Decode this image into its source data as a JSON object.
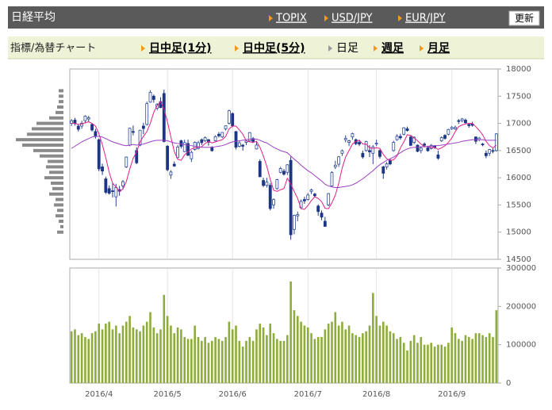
{
  "header": {
    "title": "日経平均",
    "links": [
      "TOPIX",
      "USD/JPY",
      "EUR/JPY"
    ],
    "button": "更新"
  },
  "subnav": {
    "label": "指標/為替チャート",
    "items": [
      {
        "label": "日中足(1分)",
        "link": true
      },
      {
        "label": "日中足(5分)",
        "link": true
      },
      {
        "label": "日足",
        "link": false
      },
      {
        "label": "週足",
        "link": true
      },
      {
        "label": "月足",
        "link": true
      }
    ]
  },
  "chart_data": {
    "type": "candlestick",
    "categories": [
      null,
      null,
      null,
      null,
      null,
      null,
      null,
      null,
      "2016/4",
      null,
      null,
      null,
      null,
      null,
      null,
      null,
      null,
      null,
      null,
      null,
      null,
      null,
      null,
      null,
      null,
      null,
      null,
      null,
      "2016/5",
      null,
      null,
      null,
      null,
      null,
      null,
      null,
      null,
      null,
      null,
      null,
      null,
      null,
      null,
      null,
      null,
      null,
      null,
      "2016/6",
      null,
      null,
      null,
      null,
      null,
      null,
      null,
      null,
      null,
      null,
      null,
      null,
      null,
      null,
      null,
      null,
      null,
      null,
      null,
      null,
      null,
      "2016/7",
      null,
      null,
      null,
      null,
      null,
      null,
      null,
      null,
      null,
      null,
      null,
      null,
      null,
      null,
      null,
      null,
      null,
      null,
      null,
      "2016/8",
      null,
      null,
      null,
      null,
      null,
      null,
      null,
      null,
      null,
      null,
      null,
      null,
      null,
      null,
      null,
      null,
      null,
      null,
      null,
      null,
      null,
      "2016/9",
      null,
      null,
      null,
      null,
      null,
      null,
      null,
      null,
      null,
      null,
      null,
      null,
      null
    ],
    "open": [
      17000,
      17060,
      16950,
      16950,
      17050,
      17080,
      16980,
      16850,
      16700,
      16200,
      15980,
      15800,
      15760,
      15650,
      15780,
      15850,
      16200,
      16600,
      16850,
      16500,
      16600,
      16950,
      16980,
      17390,
      17500,
      17280,
      17400,
      17550,
      16580,
      16050,
      16250,
      16370,
      16680,
      16480,
      16630,
      16350,
      16520,
      16540,
      16700,
      16680,
      16700,
      16560,
      16680,
      16800,
      16750,
      16900,
      17000,
      17180,
      16850,
      16580,
      16600,
      16650,
      16680,
      16720,
      16530,
      16300,
      15950,
      15860,
      15860,
      15500,
      15800,
      16100,
      16120,
      16100,
      16320,
      15050,
      15300,
      15450,
      15600,
      15600,
      15750,
      15700,
      15480,
      15350,
      15200,
      15500,
      15850,
      16200,
      16250,
      16450,
      16700,
      16650,
      16750,
      16700,
      16650,
      16450,
      16500,
      16500,
      16450,
      16620,
      16500,
      16200,
      16200,
      16320,
      16500,
      16700,
      16760,
      16800,
      16900,
      16750,
      16650,
      16600,
      16500,
      16620,
      16550,
      16540,
      16580,
      16420,
      16680,
      16780,
      16800,
      16900,
      16900,
      17050,
      17050,
      17060,
      16980,
      16990,
      16750,
      16700,
      16620,
      16450,
      16450,
      16500,
      16500
    ],
    "high": [
      17080,
      17100,
      16990,
      17050,
      17150,
      17140,
      17000,
      16900,
      16720,
      16260,
      16020,
      15860,
      15900,
      15890,
      15850,
      15960,
      16390,
      16920,
      16960,
      16560,
      16880,
      17010,
      17400,
      17610,
      17530,
      17370,
      17480,
      17620,
      16600,
      16140,
      16300,
      16600,
      16700,
      16700,
      16700,
      16500,
      16670,
      16680,
      16720,
      16760,
      16710,
      16580,
      16780,
      16840,
      16840,
      16960,
      17250,
      17200,
      16860,
      16680,
      16620,
      16700,
      16840,
      16750,
      16660,
      16340,
      16000,
      16000,
      15900,
      15620,
      15980,
      16200,
      16160,
      16250,
      16390,
      15320,
      15380,
      15600,
      15650,
      15720,
      15800,
      15720,
      15510,
      15400,
      15280,
      15720,
      16120,
      16310,
      16400,
      16520,
      16780,
      16700,
      16830,
      16720,
      16700,
      16500,
      16680,
      16600,
      16600,
      16700,
      16520,
      16220,
      16290,
      16350,
      16680,
      16800,
      16810,
      16930,
      16940,
      16770,
      16760,
      16610,
      16580,
      16650,
      16580,
      16620,
      16600,
      16500,
      16760,
      16800,
      16900,
      16950,
      16960,
      17080,
      17100,
      17090,
      17000,
      17030,
      16760,
      16750,
      16640,
      16500,
      16530,
      16540,
      16820
    ],
    "low": [
      16950,
      16960,
      16850,
      16900,
      17000,
      17020,
      16850,
      16720,
      16120,
      16050,
      15700,
      15690,
      15640,
      15470,
      15670,
      15800,
      16180,
      16580,
      16780,
      16250,
      16580,
      16800,
      16960,
      17380,
      17380,
      17240,
      17280,
      16650,
      16120,
      15980,
      16200,
      16360,
      16540,
      16470,
      16400,
      16290,
      16500,
      16520,
      16600,
      16660,
      16590,
      16480,
      16670,
      16740,
      16730,
      16870,
      16980,
      16930,
      16520,
      16560,
      16500,
      16600,
      16660,
      16640,
      16520,
      16010,
      15830,
      15820,
      15400,
      15430,
      15780,
      16080,
      16040,
      16050,
      14860,
      14960,
      15200,
      15430,
      15520,
      15580,
      15700,
      15640,
      15300,
      15220,
      15100,
      15480,
      15840,
      16160,
      16200,
      16400,
      16650,
      16580,
      16700,
      16600,
      16580,
      16350,
      16480,
      16380,
      16250,
      16580,
      16350,
      15980,
      16150,
      16230,
      16480,
      16680,
      16700,
      16780,
      16850,
      16580,
      16620,
      16470,
      16450,
      16560,
      16480,
      16520,
      16530,
      16330,
      16660,
      16700,
      16780,
      16880,
      16880,
      16990,
      17020,
      16990,
      16920,
      16940,
      16620,
      16670,
      16580,
      16360,
      16400,
      16450,
      16480
    ],
    "close": [
      17048,
      17000,
      16892,
      17002,
      17134,
      17103,
      16878,
      16758,
      16164,
      16123,
      15732,
      15715,
      15749,
      15821,
      15751,
      15928,
      16381,
      16911,
      16848,
      16275,
      16874,
      16906,
      17363,
      17572,
      17439,
      17353,
      17290,
      16666,
      16147,
      16106,
      16216,
      16565,
      16579,
      16646,
      16412,
      16466,
      16652,
      16644,
      16646,
      16736,
      16654,
      16498,
      16757,
      16772,
      16834,
      16955,
      17234,
      16955,
      16562,
      16642,
      16580,
      16675,
      16830,
      16668,
      16601,
      16019,
      15859,
      15919,
      15434,
      15599,
      15965,
      16169,
      16065,
      16238,
      14952,
      15309,
      15323,
      15566,
      15575,
      15682,
      15775,
      15669,
      15378,
      15276,
      15106,
      15708,
      16095,
      16231,
      16385,
      16497,
      16723,
      16681,
      16810,
      16627,
      16620,
      16383,
      16664,
      16476,
      16569,
      16635,
      16391,
      16083,
      16254,
      16254,
      16650,
      16764,
      16735,
      16919,
      16869,
      16596,
      16745,
      16486,
      16545,
      16598,
      16497,
      16597,
      16555,
      16360,
      16737,
      16725,
      16887,
      16926,
      16925,
      17037,
      17081,
      17012,
      16958,
      16965,
      16672,
      16729,
      16614,
      16405,
      16519,
      16492,
      16807
    ],
    "up_color": "#2a4a9a",
    "down_color": "#1c3585",
    "ma_lines": [
      {
        "color": "#e0208a",
        "values": [
          17000,
          17000,
          16980,
          16990,
          17010,
          17030,
          17000,
          16950,
          16810,
          16610,
          16370,
          16100,
          15900,
          15830,
          15750,
          15790,
          15930,
          16160,
          16360,
          16470,
          16660,
          16760,
          16850,
          17000,
          17200,
          17330,
          17400,
          17260,
          17030,
          16750,
          16480,
          16340,
          16320,
          16420,
          16480,
          16530,
          16550,
          16560,
          16570,
          16630,
          16670,
          16640,
          16660,
          16680,
          16700,
          16760,
          16900,
          16950,
          16950,
          16880,
          16800,
          16680,
          16660,
          16650,
          16670,
          16560,
          16400,
          16210,
          15970,
          15770,
          15750,
          15780,
          15800,
          15990,
          15880,
          15750,
          15620,
          15430,
          15420,
          15490,
          15580,
          15650,
          15620,
          15560,
          15440,
          15430,
          15540,
          15680,
          15900,
          16180,
          16380,
          16500,
          16620,
          16670,
          16690,
          16620,
          16620,
          16550,
          16540,
          16550,
          16540,
          16430,
          16350,
          16320,
          16330,
          16400,
          16550,
          16660,
          16790,
          16780,
          16730,
          16680,
          16620,
          16570,
          16580,
          16550,
          16560,
          16520,
          16550,
          16590,
          16650,
          16730,
          16850,
          16940,
          16970,
          16990,
          17000,
          17000,
          16940,
          16870,
          16790,
          16670,
          16590,
          16550,
          16600
        ]
      },
      {
        "color": "#9b3fc0",
        "values": [
          16540,
          16580,
          16620,
          16660,
          16690,
          16720,
          16750,
          16760,
          16760,
          16750,
          16720,
          16690,
          16660,
          16640,
          16620,
          16600,
          16590,
          16600,
          16610,
          16600,
          16610,
          16620,
          16640,
          16660,
          16680,
          16690,
          16690,
          16690,
          16680,
          16660,
          16640,
          16630,
          16620,
          16610,
          16600,
          16590,
          16580,
          16570,
          16560,
          16560,
          16560,
          16560,
          16570,
          16580,
          16590,
          16610,
          16640,
          16660,
          16670,
          16680,
          16690,
          16700,
          16710,
          16710,
          16710,
          16690,
          16660,
          16640,
          16600,
          16560,
          16530,
          16500,
          16480,
          16460,
          16400,
          16340,
          16290,
          16230,
          16180,
          16130,
          16090,
          16040,
          15990,
          15940,
          15880,
          15850,
          15830,
          15820,
          15820,
          15830,
          15840,
          15850,
          15870,
          15900,
          15940,
          15980,
          16030,
          16080,
          16130,
          16190,
          16240,
          16280,
          16320,
          16350,
          16380,
          16420,
          16460,
          16500,
          16530,
          16550,
          16560,
          16560,
          16570,
          16570,
          16580,
          16580,
          16590,
          16590,
          16600,
          16610,
          16620,
          16630,
          16640,
          16650,
          16670,
          16680,
          16690,
          16700,
          16700,
          16700,
          16700,
          16690,
          16690,
          16690,
          16690
        ]
      }
    ],
    "ylim": [
      14500,
      18000
    ],
    "yticks": [
      14500,
      15000,
      15500,
      16000,
      16500,
      17000,
      17500,
      18000
    ],
    "volume_color": "#8dac3a",
    "volume": [
      135000,
      140000,
      125000,
      130000,
      120000,
      115000,
      130000,
      135000,
      155000,
      140000,
      155000,
      160000,
      140000,
      150000,
      130000,
      150000,
      160000,
      175000,
      145000,
      140000,
      135000,
      150000,
      160000,
      185000,
      145000,
      130000,
      140000,
      230000,
      175000,
      150000,
      130000,
      145000,
      140000,
      120000,
      115000,
      115000,
      150000,
      120000,
      110000,
      120000,
      105000,
      110000,
      120000,
      115000,
      110000,
      120000,
      160000,
      140000,
      150000,
      110000,
      95000,
      110000,
      120000,
      110000,
      140000,
      155000,
      145000,
      125000,
      155000,
      130000,
      115000,
      110000,
      110000,
      125000,
      265000,
      190000,
      175000,
      160000,
      150000,
      145000,
      130000,
      115000,
      120000,
      120000,
      140000,
      155000,
      160000,
      185000,
      150000,
      160000,
      140000,
      150000,
      130000,
      125000,
      120000,
      130000,
      135000,
      150000,
      235000,
      175000,
      150000,
      160000,
      150000,
      135000,
      130000,
      115000,
      120000,
      105000,
      85000,
      110000,
      125000,
      105000,
      120000,
      100000,
      100000,
      105000,
      95000,
      100000,
      100000,
      95000,
      105000,
      145000,
      130000,
      115000,
      110000,
      125000,
      120000,
      115000,
      130000,
      130000,
      125000,
      120000,
      130000,
      120000,
      190000
    ],
    "y2lim": [
      0,
      300000
    ],
    "y2ticks": [
      0,
      100000,
      200000,
      300000
    ],
    "price_volume": {
      "color": "#8a8a8a",
      "levels": [
        15000,
        15100,
        15200,
        15300,
        15400,
        15500,
        15600,
        15700,
        15800,
        15900,
        16000,
        16100,
        16200,
        16300,
        16400,
        16500,
        16600,
        16700,
        16800,
        16900,
        17000,
        17100,
        17200,
        17300,
        17400,
        17500,
        17600
      ],
      "values": [
        8,
        4,
        6,
        10,
        8,
        12,
        10,
        18,
        14,
        16,
        24,
        18,
        22,
        20,
        30,
        38,
        52,
        60,
        46,
        40,
        34,
        18,
        10,
        8,
        6,
        6,
        6
      ]
    }
  }
}
